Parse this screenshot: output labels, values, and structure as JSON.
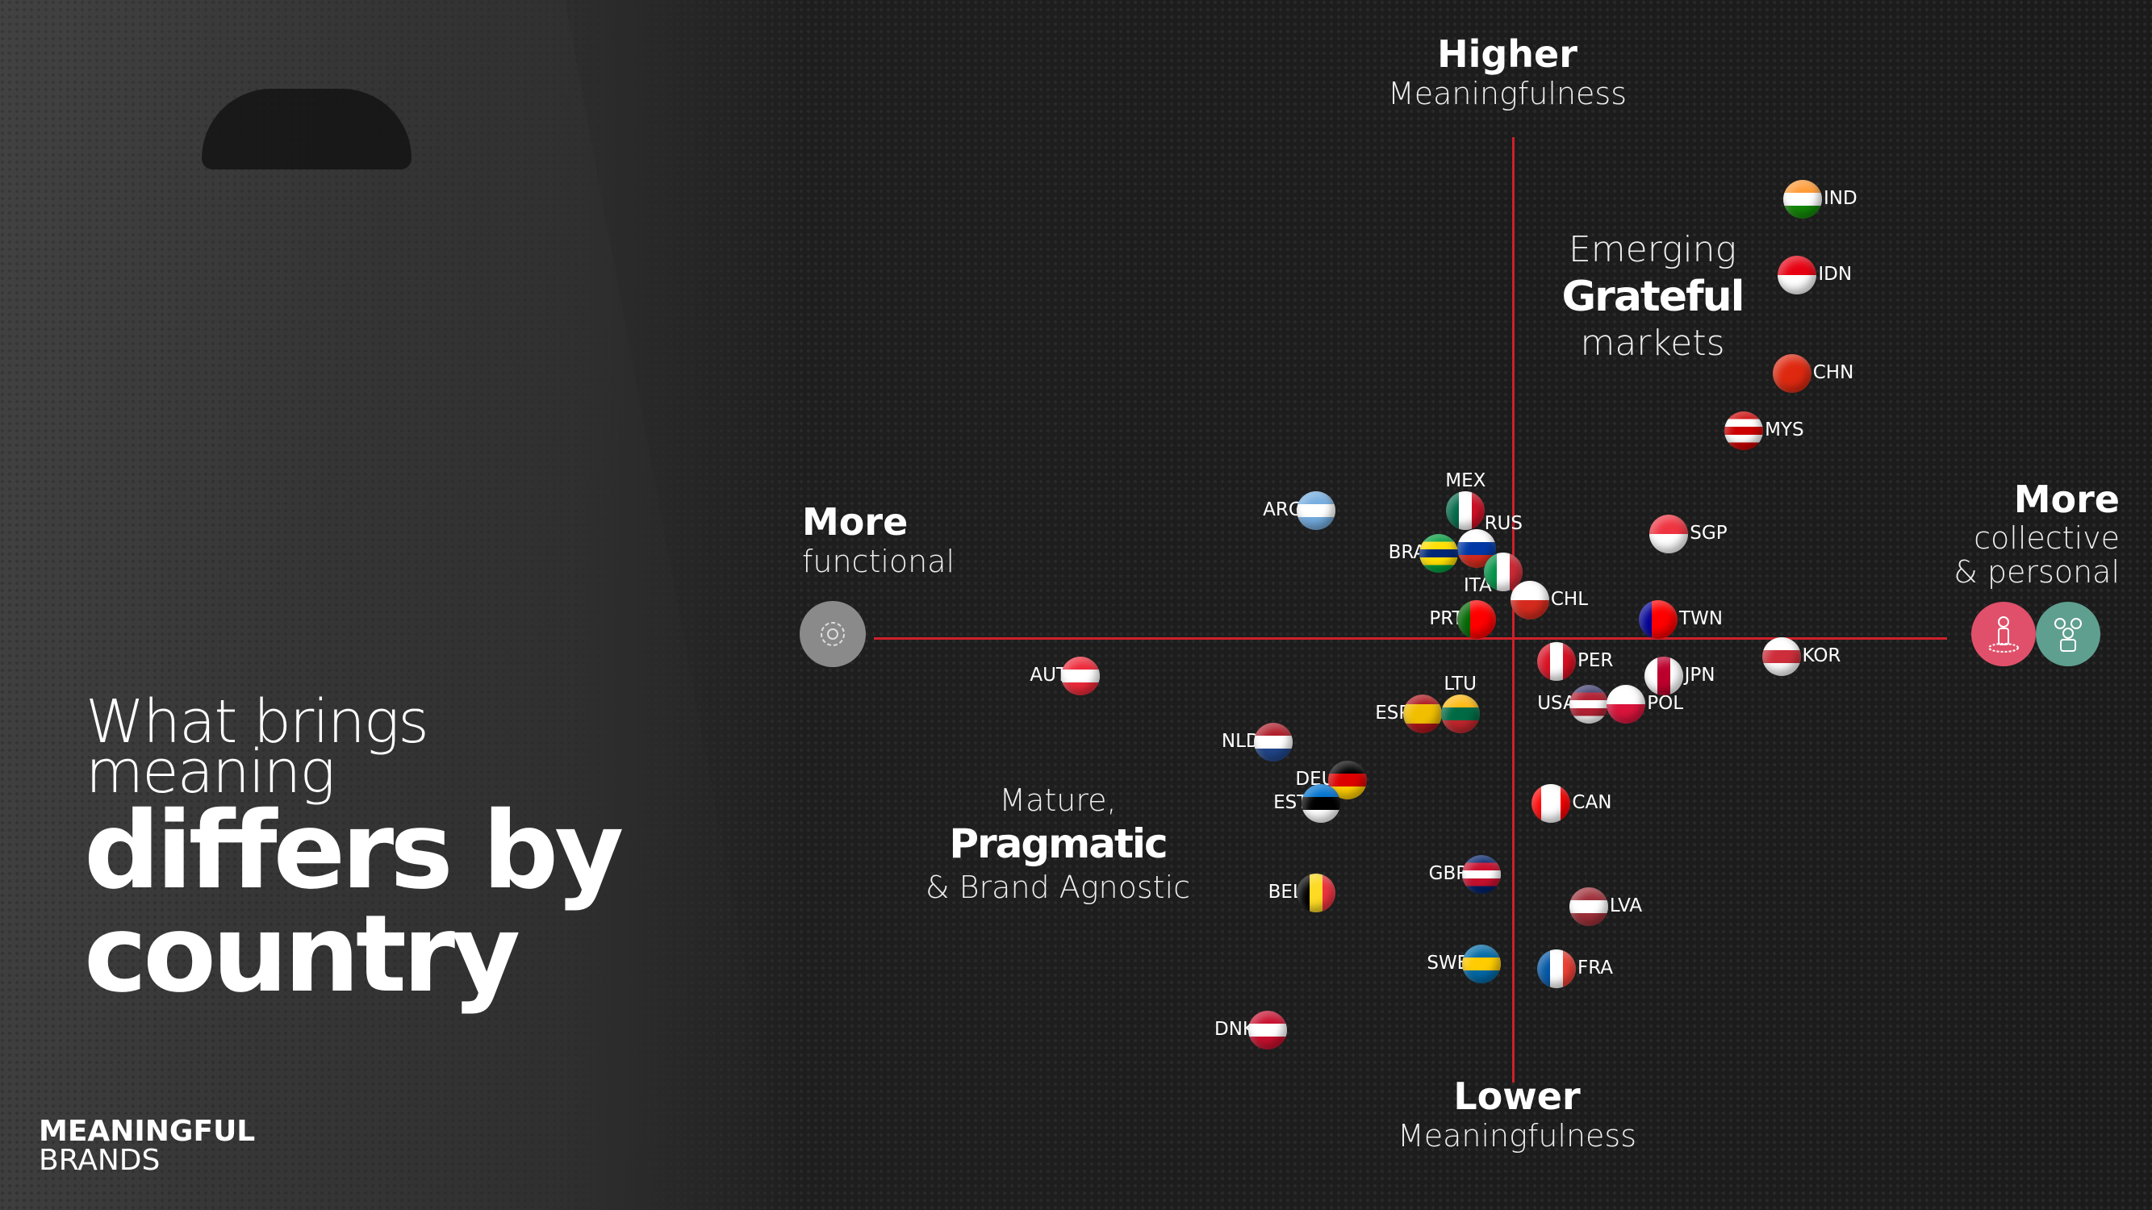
{
  "headline": {
    "line1": "What brings",
    "line2": "meaning",
    "line3": "differs by",
    "line4": "country"
  },
  "logo": {
    "line1": "MEANINGFUL",
    "line2": "BRANDS"
  },
  "colors": {
    "axis": "#d0202a",
    "individual": "#e0506a",
    "collective": "#5f9f8f",
    "functional": "#8a8a8a"
  },
  "chart_data": {
    "type": "scatter",
    "axes": {
      "y_top": {
        "strong": "Higher",
        "sub": "Meaningfulness"
      },
      "y_bottom": {
        "strong": "Lower",
        "sub": "Meaningfulness"
      },
      "x_left": {
        "strong": "More",
        "sub": "functional",
        "icon": "gear-icon"
      },
      "x_right": {
        "strong": "More",
        "sub1": "collective",
        "sub2": "& personal",
        "icons": [
          "person-icon",
          "group-icon"
        ]
      },
      "xlim": [
        -1,
        1
      ],
      "ylim": [
        -1,
        1
      ]
    },
    "quadrants": {
      "top_right": {
        "l1": "Emerging",
        "l2": "Grateful",
        "l3": "markets"
      },
      "bottom_left": {
        "l1": "Mature,",
        "l2": "Pragmatic",
        "l3": "& Brand Agnostic"
      }
    },
    "points": [
      {
        "label": "IND",
        "x": 0.54,
        "y": 0.93,
        "side": "right",
        "flag": [
          "#ff9933",
          "#ffffff",
          "#138808"
        ],
        "dir": "h"
      },
      {
        "label": "IDN",
        "x": 0.53,
        "y": 0.77,
        "side": "right",
        "flag": [
          "#e70011",
          "#ffffff"
        ],
        "dir": "h"
      },
      {
        "label": "CHN",
        "x": 0.52,
        "y": 0.56,
        "side": "right",
        "flag": [
          "#de2910"
        ],
        "dir": "h"
      },
      {
        "label": "MYS",
        "x": 0.43,
        "y": 0.44,
        "side": "right",
        "flag": [
          "#cc0001",
          "#ffffff",
          "#cc0001",
          "#ffffff",
          "#cc0001"
        ],
        "dir": "h"
      },
      {
        "label": "MEX",
        "x": -0.09,
        "y": 0.27,
        "side": "top",
        "flag": [
          "#006847",
          "#ffffff",
          "#ce1126"
        ],
        "dir": "v"
      },
      {
        "label": "ARG",
        "x": -0.37,
        "y": 0.27,
        "side": "left",
        "flag": [
          "#74acdf",
          "#ffffff",
          "#74acdf"
        ],
        "dir": "h"
      },
      {
        "label": "RUS",
        "x": -0.07,
        "y": 0.19,
        "side": "topright",
        "flag": [
          "#ffffff",
          "#0039a6",
          "#d52b1e"
        ],
        "dir": "h"
      },
      {
        "label": "BRA",
        "x": -0.14,
        "y": 0.18,
        "side": "left",
        "flag": [
          "#009c3b",
          "#ffdf00",
          "#002776",
          "#ffdf00",
          "#009c3b"
        ],
        "dir": "h"
      },
      {
        "label": "ITA",
        "x": -0.02,
        "y": 0.14,
        "side": "bottomleft",
        "flag": [
          "#009246",
          "#ffffff",
          "#ce2b37"
        ],
        "dir": "v"
      },
      {
        "label": "CHL",
        "x": 0.03,
        "y": 0.08,
        "side": "right",
        "flag": [
          "#ffffff",
          "#d52b1e"
        ],
        "dir": "h"
      },
      {
        "label": "PRT",
        "x": -0.07,
        "y": 0.04,
        "side": "left",
        "flag": [
          "#006600",
          "#ff0000",
          "#ff0000"
        ],
        "dir": "v"
      },
      {
        "label": "SGP",
        "x": 0.29,
        "y": 0.22,
        "side": "right",
        "flag": [
          "#ef3340",
          "#ffffff"
        ],
        "dir": "h"
      },
      {
        "label": "TWN",
        "x": 0.27,
        "y": 0.04,
        "side": "right",
        "flag": [
          "#000095",
          "#fe0000",
          "#fe0000"
        ],
        "dir": "v"
      },
      {
        "label": "KOR",
        "x": 0.5,
        "y": -0.04,
        "side": "right",
        "flag": [
          "#ffffff",
          "#cd2e3a",
          "#ffffff"
        ],
        "dir": "h"
      },
      {
        "label": "PER",
        "x": 0.08,
        "y": -0.05,
        "side": "right",
        "flag": [
          "#d91023",
          "#ffffff",
          "#d91023"
        ],
        "dir": "v"
      },
      {
        "label": "JPN",
        "x": 0.28,
        "y": -0.08,
        "side": "right",
        "flag": [
          "#ffffff",
          "#bc002d",
          "#ffffff"
        ],
        "dir": "v"
      },
      {
        "label": "USA",
        "x": 0.14,
        "y": -0.14,
        "side": "left",
        "flag": [
          "#3c3b6e",
          "#b22234",
          "#ffffff",
          "#b22234",
          "#ffffff"
        ],
        "dir": "h"
      },
      {
        "label": "POL",
        "x": 0.21,
        "y": -0.14,
        "side": "right",
        "flag": [
          "#ffffff",
          "#dc143c"
        ],
        "dir": "h"
      },
      {
        "label": "AUT",
        "x": -0.81,
        "y": -0.08,
        "side": "left",
        "flag": [
          "#ed2939",
          "#ffffff",
          "#ed2939"
        ],
        "dir": "h"
      },
      {
        "label": "ESP",
        "x": -0.17,
        "y": -0.16,
        "side": "left",
        "flag": [
          "#aa151b",
          "#f1bf00",
          "#f1bf00",
          "#aa151b"
        ],
        "dir": "h"
      },
      {
        "label": "LTU",
        "x": -0.1,
        "y": -0.16,
        "side": "top",
        "flag": [
          "#fdb913",
          "#006a44",
          "#c1272d"
        ],
        "dir": "h"
      },
      {
        "label": "NLD",
        "x": -0.45,
        "y": -0.22,
        "side": "left",
        "flag": [
          "#ae1c28",
          "#ffffff",
          "#21468b"
        ],
        "dir": "h"
      },
      {
        "label": "DEU",
        "x": -0.31,
        "y": -0.3,
        "side": "left",
        "flag": [
          "#000000",
          "#dd0000",
          "#ffce00"
        ],
        "dir": "h"
      },
      {
        "label": "EST",
        "x": -0.36,
        "y": -0.35,
        "side": "left",
        "flag": [
          "#0072ce",
          "#000000",
          "#ffffff"
        ],
        "dir": "h"
      },
      {
        "label": "CAN",
        "x": 0.07,
        "y": -0.35,
        "side": "right",
        "flag": [
          "#ff0000",
          "#ffffff",
          "#ffffff",
          "#ff0000"
        ],
        "dir": "v"
      },
      {
        "label": "GBR",
        "x": -0.06,
        "y": -0.5,
        "side": "left",
        "flag": [
          "#012169",
          "#c8102e",
          "#ffffff",
          "#c8102e",
          "#012169"
        ],
        "dir": "h"
      },
      {
        "label": "BEL",
        "x": -0.37,
        "y": -0.54,
        "side": "left",
        "flag": [
          "#000000",
          "#fdda24",
          "#ef3340"
        ],
        "dir": "v"
      },
      {
        "label": "LVA",
        "x": 0.14,
        "y": -0.57,
        "side": "right",
        "flag": [
          "#9e3039",
          "#ffffff",
          "#9e3039"
        ],
        "dir": "h"
      },
      {
        "label": "SWE",
        "x": -0.06,
        "y": -0.69,
        "side": "left",
        "flag": [
          "#006aa7",
          "#fecc00",
          "#006aa7"
        ],
        "dir": "h"
      },
      {
        "label": "FRA",
        "x": 0.08,
        "y": -0.7,
        "side": "right",
        "flag": [
          "#0055a4",
          "#ffffff",
          "#ef4135"
        ],
        "dir": "v"
      },
      {
        "label": "DNK",
        "x": -0.46,
        "y": -0.83,
        "side": "left",
        "flag": [
          "#c8102e",
          "#ffffff",
          "#c8102e"
        ],
        "dir": "h"
      }
    ]
  }
}
